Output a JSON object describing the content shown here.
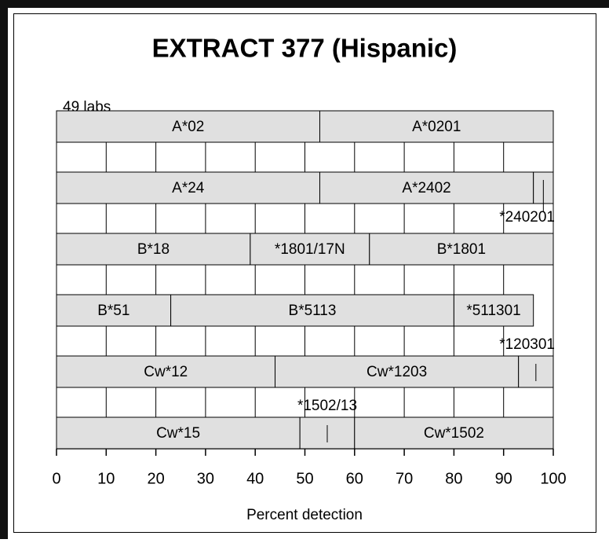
{
  "chart_data": {
    "type": "stacked-barh",
    "title": "EXTRACT 377 (Hispanic)",
    "subtitle": "49 labs",
    "x_label": "Percent detection",
    "xlim": [
      0,
      100
    ],
    "xticks": [
      0,
      10,
      20,
      30,
      40,
      50,
      60,
      70,
      80,
      90,
      100
    ],
    "grid": true,
    "color": "#e0e0e0",
    "rows": [
      {
        "segments": [
          {
            "name": "A*02",
            "value": 53
          },
          {
            "name": "A*0201",
            "value": 47
          }
        ]
      },
      {
        "segments": [
          {
            "name": "A*24",
            "value": 53
          },
          {
            "name": "A*2402",
            "value": 43
          },
          {
            "name": "*240201",
            "value": 4,
            "label_position": "below"
          }
        ]
      },
      {
        "segments": [
          {
            "name": "B*18",
            "value": 39
          },
          {
            "name": "*1801/17N",
            "value": 24
          },
          {
            "name": "B*1801",
            "value": 37
          }
        ]
      },
      {
        "segments": [
          {
            "name": "B*51",
            "value": 23
          },
          {
            "name": "B*5113",
            "value": 57
          },
          {
            "name": "*511301",
            "value": 16
          }
        ]
      },
      {
        "segments": [
          {
            "name": "Cw*12",
            "value": 44
          },
          {
            "name": "Cw*1203",
            "value": 49
          },
          {
            "name": "*120301",
            "value": 7,
            "label_position": "above"
          }
        ]
      },
      {
        "segments": [
          {
            "name": "Cw*15",
            "value": 49
          },
          {
            "name": "*1502/13",
            "value": 11,
            "label_position": "above"
          },
          {
            "name": "Cw*1502",
            "value": 40
          }
        ]
      }
    ]
  }
}
